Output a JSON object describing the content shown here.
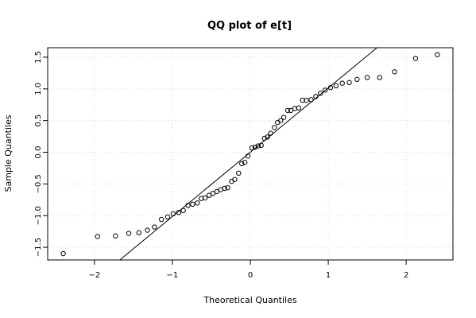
{
  "chart_data": {
    "type": "scatter",
    "title": "QQ plot of e[t]",
    "xlabel": "Theoretical Quantiles",
    "ylabel": "Sample Quantiles",
    "xlim": [
      -2.6,
      2.6
    ],
    "ylim": [
      -1.7,
      1.65
    ],
    "x_ticks": [
      -2,
      -1,
      0,
      1,
      2
    ],
    "y_ticks": [
      -1.5,
      -1.0,
      -0.5,
      0.0,
      0.5,
      1.0,
      1.5
    ],
    "x_tick_labels": [
      "−2",
      "−1",
      "0",
      "1",
      "2"
    ],
    "y_tick_labels": [
      "−1.5",
      "−1.0",
      "−0.5",
      "0.0",
      "0.5",
      "1.0",
      "1.5"
    ],
    "grid": true,
    "reference_line": {
      "intercept": 0.0,
      "slope": 1.015
    },
    "points": [
      [
        -2.4,
        -1.6
      ],
      [
        -1.96,
        -1.33
      ],
      [
        -1.73,
        -1.32
      ],
      [
        -1.56,
        -1.28
      ],
      [
        -1.43,
        -1.27
      ],
      [
        -1.32,
        -1.23
      ],
      [
        -1.23,
        -1.18
      ],
      [
        -1.14,
        -1.06
      ],
      [
        -1.06,
        -1.02
      ],
      [
        -0.99,
        -0.97
      ],
      [
        -0.92,
        -0.95
      ],
      [
        -0.86,
        -0.92
      ],
      [
        -0.8,
        -0.84
      ],
      [
        -0.74,
        -0.82
      ],
      [
        -0.68,
        -0.8
      ],
      [
        -0.63,
        -0.73
      ],
      [
        -0.58,
        -0.72
      ],
      [
        -0.53,
        -0.68
      ],
      [
        -0.48,
        -0.65
      ],
      [
        -0.43,
        -0.62
      ],
      [
        -0.38,
        -0.59
      ],
      [
        -0.33,
        -0.57
      ],
      [
        -0.29,
        -0.56
      ],
      [
        -0.24,
        -0.46
      ],
      [
        -0.2,
        -0.43
      ],
      [
        -0.15,
        -0.33
      ],
      [
        -0.11,
        -0.18
      ],
      [
        -0.07,
        -0.16
      ],
      [
        -0.03,
        -0.06
      ],
      [
        0.02,
        0.07
      ],
      [
        0.06,
        0.08
      ],
      [
        0.1,
        0.1
      ],
      [
        0.14,
        0.11
      ],
      [
        0.18,
        0.22
      ],
      [
        0.22,
        0.24
      ],
      [
        0.26,
        0.3
      ],
      [
        0.31,
        0.39
      ],
      [
        0.35,
        0.47
      ],
      [
        0.39,
        0.5
      ],
      [
        0.43,
        0.55
      ],
      [
        0.48,
        0.66
      ],
      [
        0.52,
        0.66
      ],
      [
        0.57,
        0.69
      ],
      [
        0.62,
        0.7
      ],
      [
        0.67,
        0.82
      ],
      [
        0.72,
        0.82
      ],
      [
        0.78,
        0.83
      ],
      [
        0.84,
        0.88
      ],
      [
        0.9,
        0.93
      ],
      [
        0.96,
        0.98
      ],
      [
        1.03,
        1.02
      ],
      [
        1.1,
        1.05
      ],
      [
        1.18,
        1.09
      ],
      [
        1.27,
        1.1
      ],
      [
        1.37,
        1.15
      ],
      [
        1.5,
        1.18
      ],
      [
        1.66,
        1.18
      ],
      [
        1.85,
        1.27
      ],
      [
        2.12,
        1.48
      ],
      [
        2.4,
        1.54
      ]
    ]
  }
}
